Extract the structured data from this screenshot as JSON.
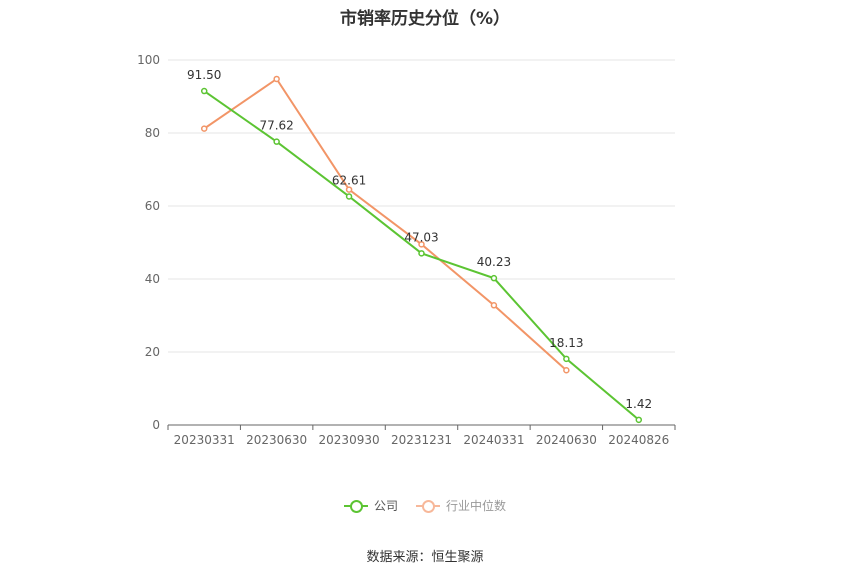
{
  "chart_data": {
    "type": "line",
    "title": "市销率历史分位（%）",
    "categories": [
      "20230331",
      "20230630",
      "20230930",
      "20231231",
      "20240331",
      "20240630",
      "20240826"
    ],
    "y_ticks": [
      "0",
      "20",
      "40",
      "60",
      "80",
      "100"
    ],
    "ylim": [
      0,
      100
    ],
    "grid": true,
    "legend_position": "bottom",
    "series": [
      {
        "name": "公司",
        "color": "#5cc433",
        "values": [
          91.5,
          77.62,
          62.61,
          47.03,
          40.23,
          18.13,
          1.42
        ],
        "labels": [
          "91.50",
          "77.62",
          "62.61",
          "47.03",
          "40.23",
          "18.13",
          "1.42"
        ]
      },
      {
        "name": "行业中位数",
        "color": "#f29567",
        "values": [
          81.2,
          94.8,
          64.5,
          49.5,
          32.8,
          15.0,
          null
        ]
      }
    ]
  },
  "footer": {
    "source": "数据来源：恒生聚源"
  }
}
